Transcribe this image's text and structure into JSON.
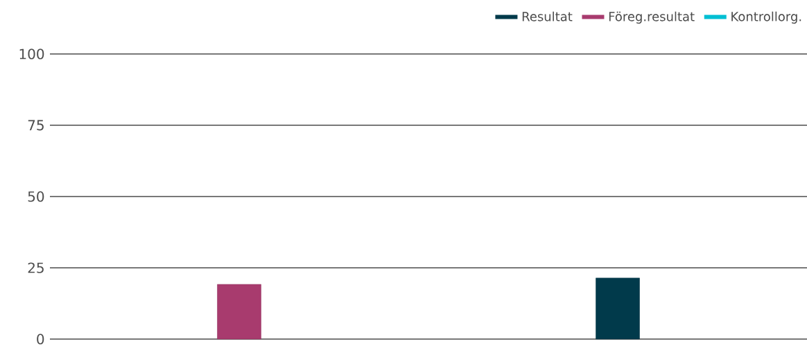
{
  "chart_data": {
    "type": "bar",
    "categories": [
      null,
      null
    ],
    "series": [
      {
        "name": "Resultat",
        "color": "#013a4b",
        "values": [
          null,
          21.4
        ]
      },
      {
        "name": "Föreg.resultat",
        "color": "#a83b6e",
        "values": [
          19.2,
          null
        ]
      },
      {
        "name": "Kontrollorg.",
        "color": "#00bfd3",
        "values": [
          null,
          null
        ]
      }
    ],
    "ylim": [
      0,
      100
    ],
    "yticks": [
      0,
      25,
      50,
      75,
      100
    ],
    "grid": "y",
    "legend": "top right"
  }
}
